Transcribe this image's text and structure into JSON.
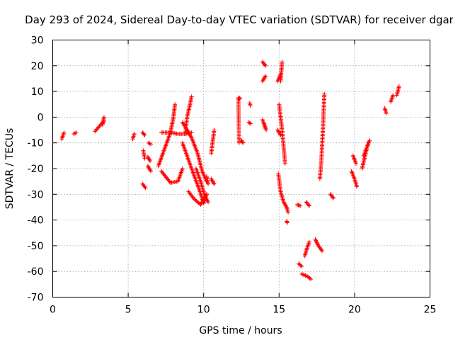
{
  "chart_data": {
    "type": "scatter",
    "title": "Day 293 of 2024, Sidereal Day-to-day VTEC variation (SDTVAR) for receiver dgar",
    "xlabel": "GPS time / hours",
    "ylabel": "SDTVAR / TECUs",
    "xlim": [
      0,
      25
    ],
    "ylim": [
      -70,
      30
    ],
    "xticks": [
      0,
      5,
      10,
      15,
      20,
      25
    ],
    "yticks": [
      -70,
      -60,
      -50,
      -40,
      -30,
      -20,
      -10,
      0,
      10,
      20,
      30
    ],
    "grid": true,
    "marker": "+",
    "color": "#ff0000",
    "series": [
      {
        "name": "SDTVAR",
        "segments": [
          {
            "x": [
              0.6,
              0.75
            ],
            "y": [
              -8.5,
              -6.0
            ]
          },
          {
            "x": [
              1.4,
              1.55
            ],
            "y": [
              -6.5,
              -6.0
            ]
          },
          {
            "x": [
              2.8,
              3.4
            ],
            "y": [
              -5.5,
              -1.5
            ]
          },
          {
            "x": [
              3.3,
              3.4
            ],
            "y": [
              -3.0,
              0.0
            ]
          },
          {
            "x": [
              5.3,
              5.4
            ],
            "y": [
              -8.5,
              -6.5
            ]
          },
          {
            "x": [
              5.95,
              6.1
            ],
            "y": [
              -6.0,
              -7.0
            ]
          },
          {
            "x": [
              6.0,
              6.1
            ],
            "y": [
              -13.0,
              -16.0
            ]
          },
          {
            "x": [
              6.35,
              6.5
            ],
            "y": [
              -10.0,
              -10.5
            ]
          },
          {
            "x": [
              6.3,
              6.45
            ],
            "y": [
              -15.5,
              -17.0
            ]
          },
          {
            "x": [
              6.3,
              6.5
            ],
            "y": [
              -19.0,
              -21.0
            ]
          },
          {
            "x": [
              5.95,
              6.15
            ],
            "y": [
              -26.0,
              -27.5
            ]
          },
          {
            "x": [
              7.0,
              7.8,
              8.0,
              8.1
            ],
            "y": [
              -19.0,
              -6.0,
              0.0,
              5.0
            ]
          },
          {
            "x": [
              7.2,
              7.8,
              8.3,
              8.8,
              9.2
            ],
            "y": [
              -6.0,
              -6.0,
              -6.5,
              -6.5,
              -6.0
            ]
          },
          {
            "x": [
              7.2,
              7.8,
              8.3,
              8.6
            ],
            "y": [
              -21.0,
              -25.5,
              -25.0,
              -20.0
            ]
          },
          {
            "x": [
              8.8,
              8.9,
              9.1,
              9.2
            ],
            "y": [
              -6.0,
              0.0,
              5.0,
              8.0
            ]
          },
          {
            "x": [
              8.6,
              9.2,
              9.6,
              9.9,
              10.2
            ],
            "y": [
              -2.0,
              -8.0,
              -14.0,
              -21.0,
              -25.0
            ]
          },
          {
            "x": [
              8.6,
              9.2,
              9.7,
              10.0,
              10.2
            ],
            "y": [
              -10.0,
              -20.0,
              -28.0,
              -33.5,
              -30.0
            ]
          },
          {
            "x": [
              9.5,
              9.8,
              10.1,
              10.3
            ],
            "y": [
              -20.0,
              -25.0,
              -31.0,
              -33.0
            ]
          },
          {
            "x": [
              9.0,
              9.4,
              9.8,
              10.2
            ],
            "y": [
              -29.0,
              -32.0,
              -34.0,
              -30.0
            ]
          },
          {
            "x": [
              10.2,
              10.3
            ],
            "y": [
              -23.0,
              -26.0
            ]
          },
          {
            "x": [
              10.5,
              10.7
            ],
            "y": [
              -24.0,
              -26.0
            ]
          },
          {
            "x": [
              10.5,
              10.7
            ],
            "y": [
              -14.0,
              -5.0
            ]
          },
          {
            "x": [
              12.3,
              12.35
            ],
            "y": [
              7.5,
              -10.0
            ]
          },
          {
            "x": [
              12.35,
              12.4
            ],
            "y": [
              7.0,
              7.5
            ]
          },
          {
            "x": [
              12.5,
              12.6
            ],
            "y": [
              -9.0,
              -10.0
            ]
          },
          {
            "x": [
              13.05,
              13.1
            ],
            "y": [
              5.5,
              4.5
            ]
          },
          {
            "x": [
              13.0,
              13.1
            ],
            "y": [
              -2.0,
              -2.5
            ]
          },
          {
            "x": [
              13.9,
              14.1
            ],
            "y": [
              21.5,
              20.0
            ]
          },
          {
            "x": [
              13.9,
              14.1
            ],
            "y": [
              14.0,
              16.0
            ]
          },
          {
            "x": [
              13.9,
              14.1
            ],
            "y": [
              -1.0,
              -4.0
            ]
          },
          {
            "x": [
              14.0,
              14.15
            ],
            "y": [
              -3.0,
              -5.0
            ]
          },
          {
            "x": [
              14.9,
              15.1
            ],
            "y": [
              14.0,
              16.5
            ]
          },
          {
            "x": [
              15.1,
              15.15,
              15.2
            ],
            "y": [
              14.0,
              18.0,
              21.5
            ]
          },
          {
            "x": [
              15.0,
              15.2,
              15.4
            ],
            "y": [
              5.0,
              -5.0,
              -18.0
            ]
          },
          {
            "x": [
              14.9,
              15.1
            ],
            "y": [
              -5.0,
              -7.0
            ]
          },
          {
            "x": [
              14.95,
              15.1,
              15.3,
              15.5
            ],
            "y": [
              -22.0,
              -29.0,
              -33.0,
              -35.0
            ]
          },
          {
            "x": [
              15.5,
              15.6
            ],
            "y": [
              -35.0,
              -37.0
            ]
          },
          {
            "x": [
              15.5,
              15.55
            ],
            "y": [
              -40.5,
              -41.0
            ]
          },
          {
            "x": [
              16.2,
              16.4
            ],
            "y": [
              -34.0,
              -34.5
            ]
          },
          {
            "x": [
              16.3,
              16.5
            ],
            "y": [
              -57.0,
              -58.0
            ]
          },
          {
            "x": [
              16.8,
              17.0
            ],
            "y": [
              -33.0,
              -34.5
            ]
          },
          {
            "x": [
              16.5,
              16.9,
              17.1
            ],
            "y": [
              -61.0,
              -62.0,
              -63.0
            ]
          },
          {
            "x": [
              16.7,
              16.85,
              17.0
            ],
            "y": [
              -54.0,
              -51.0,
              -48.5
            ]
          },
          {
            "x": [
              17.4,
              17.6,
              17.85
            ],
            "y": [
              -47.5,
              -50.0,
              -52.0
            ]
          },
          {
            "x": [
              17.7,
              17.8,
              17.9,
              18.0
            ],
            "y": [
              -24.0,
              -17.0,
              -5.0,
              9.0
            ]
          },
          {
            "x": [
              18.4,
              18.6
            ],
            "y": [
              -30.0,
              -31.5
            ]
          },
          {
            "x": [
              19.8,
              20.0,
              20.15
            ],
            "y": [
              -21.0,
              -24.0,
              -27.0
            ]
          },
          {
            "x": [
              19.9,
              20.1
            ],
            "y": [
              -15.0,
              -18.0
            ]
          },
          {
            "x": [
              20.5,
              20.7,
              20.9
            ],
            "y": [
              -20.0,
              -15.0,
              -10.0
            ]
          },
          {
            "x": [
              20.6,
              20.8,
              21.0
            ],
            "y": [
              -15.0,
              -12.0,
              -9.0
            ]
          },
          {
            "x": [
              22.0,
              22.1
            ],
            "y": [
              3.5,
              1.5
            ]
          },
          {
            "x": [
              22.4,
              22.55
            ],
            "y": [
              6.0,
              8.5
            ]
          },
          {
            "x": [
              22.8,
              22.95
            ],
            "y": [
              8.5,
              12.0
            ]
          }
        ]
      }
    ]
  }
}
